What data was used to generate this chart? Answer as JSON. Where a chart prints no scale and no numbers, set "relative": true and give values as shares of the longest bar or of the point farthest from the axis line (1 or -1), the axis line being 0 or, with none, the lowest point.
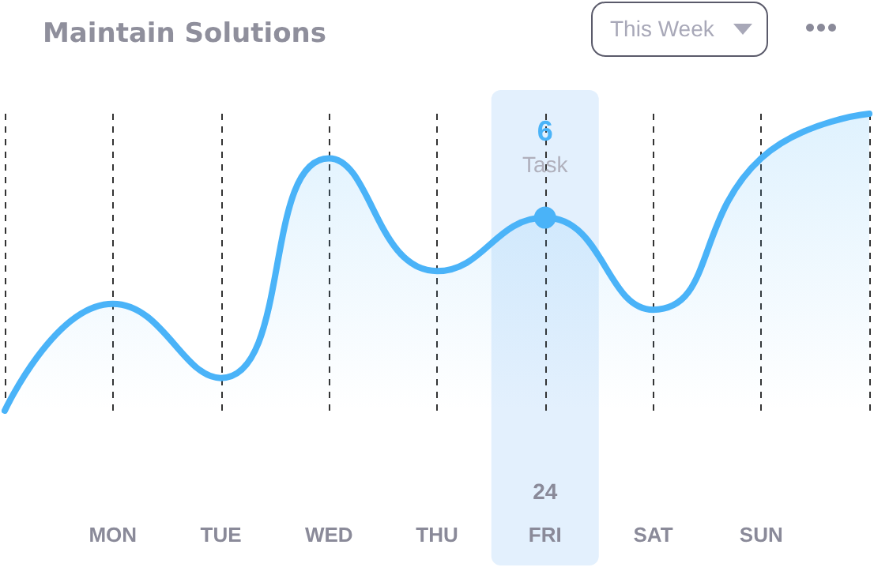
{
  "chart_data": {
    "type": "area",
    "title": "Maintain Solutions",
    "categories": [
      null,
      "MON",
      "TUE",
      "WED",
      "THU",
      "FRI",
      "SAT",
      "SUN",
      null
    ],
    "series": [
      {
        "color": "#4ab3f8",
        "values": [
          0,
          0.36,
          0.11,
          0.85,
          0.47,
          0.65,
          0.34,
          0.85,
          1
        ]
      }
    ],
    "relative": true,
    "grid": "x",
    "bands": [
      {
        "axis": "x",
        "from": "FRI",
        "to": "FRI",
        "color": "#e3f0fd"
      }
    ],
    "annotations": [
      "This Week",
      "6",
      "Task",
      "24"
    ]
  }
}
